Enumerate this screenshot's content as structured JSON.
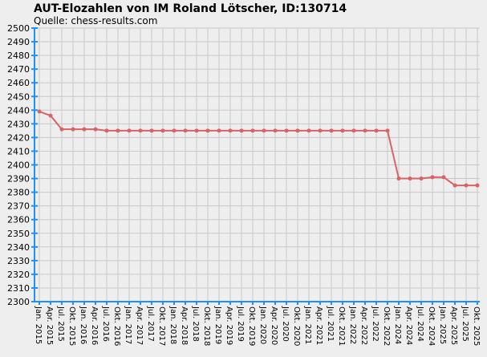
{
  "chart_data": {
    "type": "line",
    "title": "AUT-Elozahlen von IM Roland Lötscher, ID:130714",
    "subtitle": "Quelle: chess-results.com",
    "categories": [
      "Jan. 2015",
      "Apr. 2015",
      "Jul. 2015",
      "Okt. 2015",
      "Jan. 2016",
      "Apr. 2016",
      "Jul. 2016",
      "Okt. 2016",
      "Jan. 2017",
      "Apr. 2017",
      "Jul. 2017",
      "Okt. 2017",
      "Jan. 2018",
      "Apr. 2018",
      "Jul. 2018",
      "Okt. 2018",
      "Jan. 2019",
      "Apr. 2019",
      "Jul. 2019",
      "Okt. 2019",
      "Jan. 2020",
      "Apr. 2020",
      "Jul. 2020",
      "Okt. 2020",
      "Jan. 2021",
      "Apr. 2021",
      "Jul. 2021",
      "Okt. 2021",
      "Jan. 2022",
      "Apr. 2022",
      "Jul. 2022",
      "Okt. 2022",
      "Jan. 2024",
      "Apr. 2024",
      "Jul. 2024",
      "Okt. 2024",
      "Jan. 2025",
      "Apr. 2025",
      "Jul. 2025",
      "Okt. 2025"
    ],
    "series": [
      {
        "color": "#d96464",
        "values": [
          2439,
          2436,
          2426,
          2426,
          2426,
          2426,
          2425,
          2425,
          2425,
          2425,
          2425,
          2425,
          2425,
          2425,
          2425,
          2425,
          2425,
          2425,
          2425,
          2425,
          2425,
          2425,
          2425,
          2425,
          2425,
          2425,
          2425,
          2425,
          2425,
          2425,
          2425,
          2425,
          2390,
          2390,
          2390,
          2391,
          2391,
          2385,
          2385,
          2385
        ]
      }
    ],
    "ylim": [
      2300,
      2500
    ],
    "yticks": [
      2300,
      2310,
      2320,
      2330,
      2340,
      2350,
      2360,
      2370,
      2380,
      2390,
      2400,
      2410,
      2420,
      2430,
      2440,
      2450,
      2460,
      2470,
      2480,
      2490,
      2500
    ],
    "grid": true
  }
}
